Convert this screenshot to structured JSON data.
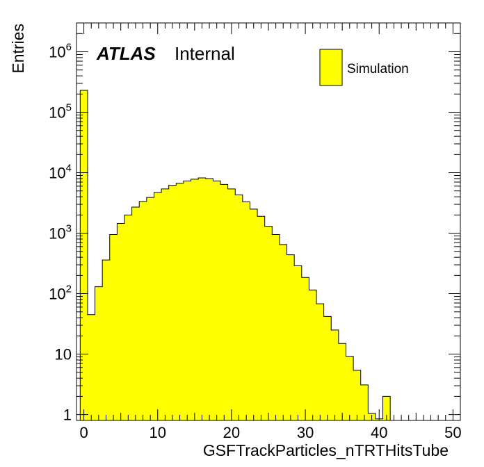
{
  "chart_data": {
    "type": "bar",
    "style": "histogram",
    "xlabel": "GSFTrackParticles_nTRTHitsTube",
    "ylabel": "Entries",
    "xlim": [
      -1,
      51
    ],
    "ylim": [
      0.8,
      3000000
    ],
    "yscale": "log",
    "x_bin_width": 1,
    "x_tick_labels": [
      "0",
      "10",
      "20",
      "30",
      "40",
      "50"
    ],
    "y_tick_labels": [
      "1",
      "10",
      "10^2",
      "10^3",
      "10^4",
      "10^5",
      "10^6"
    ],
    "fill_color": "#ffff00",
    "line_color": "#000000",
    "legend_position": "top-right",
    "series": [
      {
        "name": "Simulation",
        "bin_low_edges": [
          -0.5,
          0.5,
          1.5,
          2.5,
          3.5,
          4.5,
          5.5,
          6.5,
          7.5,
          8.5,
          9.5,
          10.5,
          11.5,
          12.5,
          13.5,
          14.5,
          15.5,
          16.5,
          17.5,
          18.5,
          19.5,
          20.5,
          21.5,
          22.5,
          23.5,
          24.5,
          25.5,
          26.5,
          27.5,
          28.5,
          29.5,
          30.5,
          31.5,
          32.5,
          33.5,
          34.5,
          35.5,
          36.5,
          37.5,
          38.5,
          39.5,
          40.5
        ],
        "values": [
          230000,
          45,
          130,
          360,
          950,
          1450,
          2000,
          2700,
          3350,
          3900,
          4700,
          5400,
          6200,
          6700,
          7300,
          7800,
          8200,
          8000,
          7300,
          6400,
          5400,
          4300,
          3300,
          2500,
          1900,
          1300,
          950,
          650,
          440,
          290,
          185,
          115,
          68,
          42,
          25,
          15,
          9.2,
          5.4,
          3.1,
          1.05,
          0.85,
          2.0
        ]
      }
    ],
    "annotations": {
      "atlas": "ATLAS",
      "status": "Internal"
    }
  }
}
